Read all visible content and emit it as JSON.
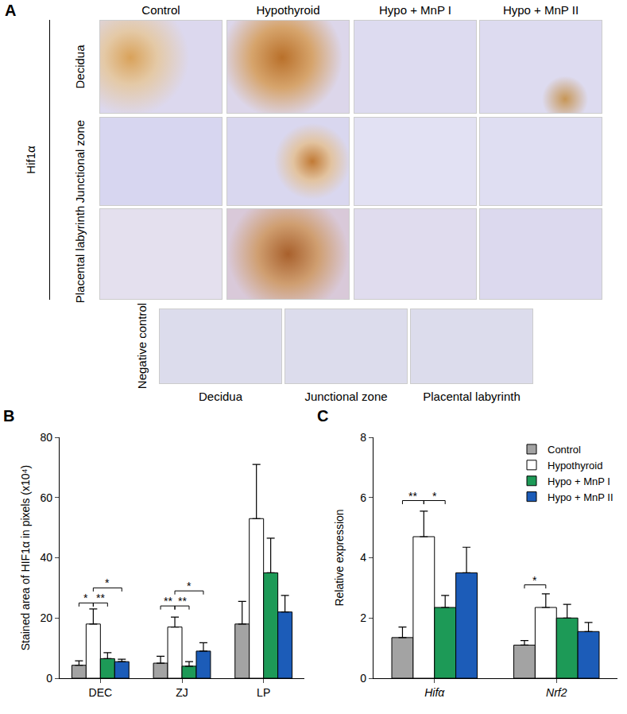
{
  "panel_a": {
    "label": "A",
    "columns": [
      "Control",
      "Hypothyroid",
      "Hypo + MnP I",
      "Hypo + MnP II"
    ],
    "group_label": "Hif1α",
    "rows": [
      "Decidua",
      "Junctional zone",
      "Placental labyrinth"
    ],
    "negative_control": {
      "label": "Negative control",
      "columns": [
        "Decidua",
        "Junctional zone",
        "Placental labyrinth"
      ]
    }
  },
  "chart_data": [
    {
      "type": "bar",
      "title": "B",
      "y_label": "Stained area of HIF1α in pixels (x10⁴)",
      "categories": [
        "DEC",
        "ZJ",
        "LP"
      ],
      "series": [
        {
          "name": "Control",
          "color": "#a3a3a3",
          "values": [
            4.3,
            5.0,
            18.0
          ],
          "errors": [
            1.5,
            2.3,
            7.5
          ]
        },
        {
          "name": "Hypothyroid",
          "color": "#ffffff",
          "values": [
            18.0,
            17.0,
            53.0
          ],
          "errors": [
            5.0,
            3.3,
            18.0
          ]
        },
        {
          "name": "Hypo + MnP I",
          "color": "#1d9a57",
          "values": [
            6.5,
            4.0,
            35.0
          ],
          "errors": [
            2.0,
            1.5,
            11.5
          ]
        },
        {
          "name": "Hypo + MnP II",
          "color": "#1c5cb8",
          "values": [
            5.5,
            9.0,
            22.0
          ],
          "errors": [
            0.8,
            2.8,
            5.5
          ]
        }
      ],
      "ylim": [
        0,
        80
      ],
      "yticks": [
        0,
        20,
        40,
        60,
        80
      ],
      "grid": false,
      "annotations": [
        {
          "text": "*",
          "category": "DEC",
          "from": "Control",
          "to": "Hypothyroid",
          "y": 25
        },
        {
          "text": "**",
          "category": "DEC",
          "from": "Hypothyroid",
          "to": "Hypo + MnP I",
          "y": 25
        },
        {
          "text": "*",
          "category": "DEC",
          "from": "Hypothyroid",
          "to": "Hypo + MnP II",
          "y": 30
        },
        {
          "text": "**",
          "category": "ZJ",
          "from": "Control",
          "to": "Hypothyroid",
          "y": 24
        },
        {
          "text": "**",
          "category": "ZJ",
          "from": "Hypothyroid",
          "to": "Hypo + MnP I",
          "y": 24
        },
        {
          "text": "*",
          "category": "ZJ",
          "from": "Hypothyroid",
          "to": "Hypo + MnP II",
          "y": 29
        }
      ]
    },
    {
      "type": "bar",
      "title": "C",
      "y_label": "Relative expression",
      "categories": [
        "Hifα",
        "Nrf2"
      ],
      "series": [
        {
          "name": "Control",
          "color": "#a3a3a3",
          "values": [
            1.35,
            1.1
          ],
          "errors": [
            0.35,
            0.15
          ]
        },
        {
          "name": "Hypothyroid",
          "color": "#ffffff",
          "values": [
            4.7,
            2.35
          ],
          "errors": [
            0.85,
            0.45
          ]
        },
        {
          "name": "Hypo + MnP I",
          "color": "#1d9a57",
          "values": [
            2.35,
            2.0
          ],
          "errors": [
            0.4,
            0.45
          ]
        },
        {
          "name": "Hypo + MnP II",
          "color": "#1c5cb8",
          "values": [
            3.5,
            1.55
          ],
          "errors": [
            0.85,
            0.3
          ]
        }
      ],
      "ylim": [
        0,
        8
      ],
      "yticks": [
        0,
        2,
        4,
        6,
        8
      ],
      "grid": false,
      "legend": "upper right",
      "annotations": [
        {
          "text": "**",
          "category": "Hifα",
          "from": "Control",
          "to": "Hypothyroid",
          "y": 5.9
        },
        {
          "text": "*",
          "category": "Hifα",
          "from": "Hypothyroid",
          "to": "Hypo + MnP I",
          "y": 5.9
        },
        {
          "text": "*",
          "category": "Nrf2",
          "from": "Control",
          "to": "Hypothyroid",
          "y": 3.1
        }
      ]
    }
  ]
}
